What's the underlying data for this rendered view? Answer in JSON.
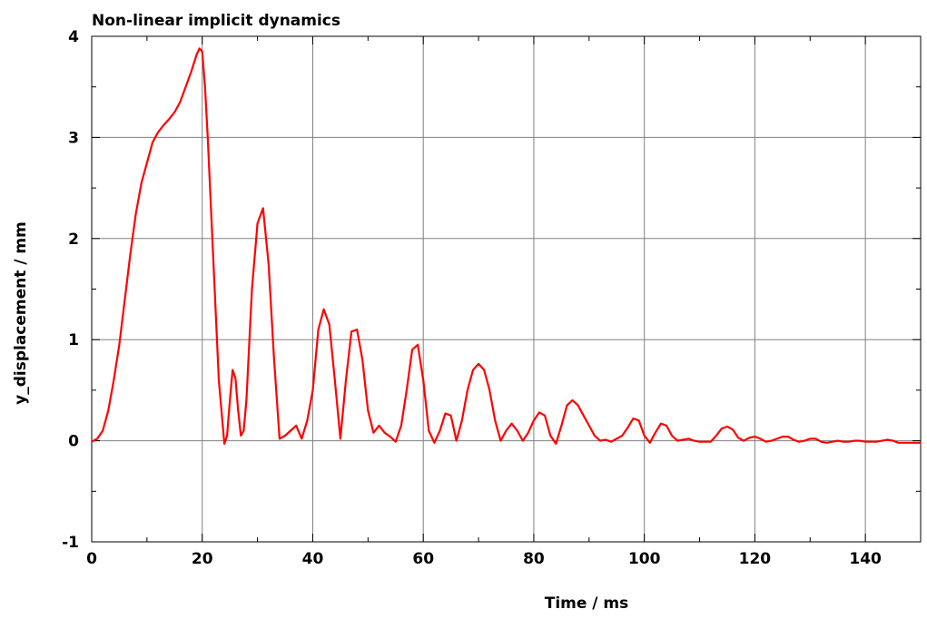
{
  "chart_data": {
    "type": "line",
    "title": "Non-linear implicit dynamics",
    "xlabel": "Time / ms",
    "ylabel": "y_displacement / mm",
    "xlim": [
      0,
      150
    ],
    "ylim": [
      -1,
      4
    ],
    "xticks": [
      0,
      20,
      40,
      60,
      80,
      100,
      120,
      140
    ],
    "yticks": [
      -1,
      0,
      1,
      2,
      3,
      4
    ],
    "grid": true,
    "line_color": "#ff0000",
    "series": [
      {
        "x": [
          0,
          1,
          2,
          3,
          4,
          5,
          6,
          7,
          8,
          9,
          10,
          11,
          12,
          13,
          14,
          15,
          16,
          17,
          18,
          19,
          19.5,
          20,
          20.5,
          21,
          22,
          23,
          24,
          24.5,
          25,
          25.5,
          26,
          26.5,
          27,
          27.5,
          28,
          29,
          30,
          31,
          32,
          33,
          34,
          35,
          36,
          37,
          38,
          39,
          40,
          41,
          42,
          43,
          44,
          45,
          46,
          47,
          48,
          49,
          50,
          51,
          52,
          53,
          54,
          55,
          56,
          57,
          58,
          59,
          60,
          61,
          62,
          63,
          64,
          65,
          66,
          67,
          68,
          69,
          70,
          71,
          72,
          73,
          74,
          75,
          76,
          77,
          78,
          79,
          80,
          81,
          82,
          83,
          84,
          85,
          86,
          87,
          88,
          89,
          90,
          91,
          92,
          93,
          94,
          95,
          96,
          97,
          98,
          99,
          100,
          101,
          102,
          103,
          104,
          105,
          106,
          107,
          108,
          109,
          110,
          111,
          112,
          113,
          114,
          115,
          116,
          117,
          118,
          119,
          120,
          121,
          122,
          123,
          124,
          125,
          126,
          127,
          128,
          129,
          130,
          131,
          132,
          133,
          134,
          135,
          136,
          137,
          138,
          139,
          140,
          141,
          142,
          143,
          144,
          145,
          146,
          147,
          148,
          149,
          150
        ],
        "y": [
          -0.01,
          0.02,
          0.1,
          0.3,
          0.6,
          0.95,
          1.4,
          1.85,
          2.25,
          2.55,
          2.75,
          2.95,
          3.05,
          3.12,
          3.18,
          3.25,
          3.35,
          3.5,
          3.65,
          3.82,
          3.88,
          3.85,
          3.5,
          3.0,
          1.8,
          0.6,
          -0.03,
          0.05,
          0.4,
          0.7,
          0.62,
          0.3,
          0.05,
          0.1,
          0.4,
          1.5,
          2.15,
          2.3,
          1.75,
          0.8,
          0.02,
          0.05,
          0.1,
          0.15,
          0.02,
          0.2,
          0.5,
          1.1,
          1.3,
          1.15,
          0.6,
          0.02,
          0.6,
          1.08,
          1.1,
          0.8,
          0.3,
          0.08,
          0.15,
          0.08,
          0.04,
          -0.01,
          0.15,
          0.5,
          0.9,
          0.95,
          0.6,
          0.1,
          -0.02,
          0.1,
          0.27,
          0.25,
          0.0,
          0.2,
          0.5,
          0.7,
          0.76,
          0.7,
          0.5,
          0.2,
          0.0,
          0.1,
          0.17,
          0.1,
          0.0,
          0.08,
          0.2,
          0.28,
          0.25,
          0.05,
          -0.03,
          0.15,
          0.35,
          0.4,
          0.35,
          0.25,
          0.15,
          0.05,
          0.0,
          0.01,
          -0.01,
          0.02,
          0.05,
          0.13,
          0.22,
          0.2,
          0.05,
          -0.02,
          0.08,
          0.17,
          0.15,
          0.05,
          0.0,
          0.01,
          0.02,
          0.0,
          -0.01,
          -0.01,
          -0.01,
          0.05,
          0.12,
          0.14,
          0.11,
          0.03,
          0.0,
          0.03,
          0.04,
          0.02,
          -0.01,
          0.0,
          0.02,
          0.04,
          0.04,
          0.01,
          -0.01,
          0.0,
          0.02,
          0.02,
          -0.01,
          -0.02,
          -0.01,
          0.0,
          -0.01,
          -0.01,
          0.0,
          0.0,
          -0.01,
          -0.01,
          -0.01,
          0.0,
          0.01,
          0.0,
          -0.02,
          -0.02,
          -0.02,
          -0.02,
          -0.02
        ]
      }
    ]
  }
}
